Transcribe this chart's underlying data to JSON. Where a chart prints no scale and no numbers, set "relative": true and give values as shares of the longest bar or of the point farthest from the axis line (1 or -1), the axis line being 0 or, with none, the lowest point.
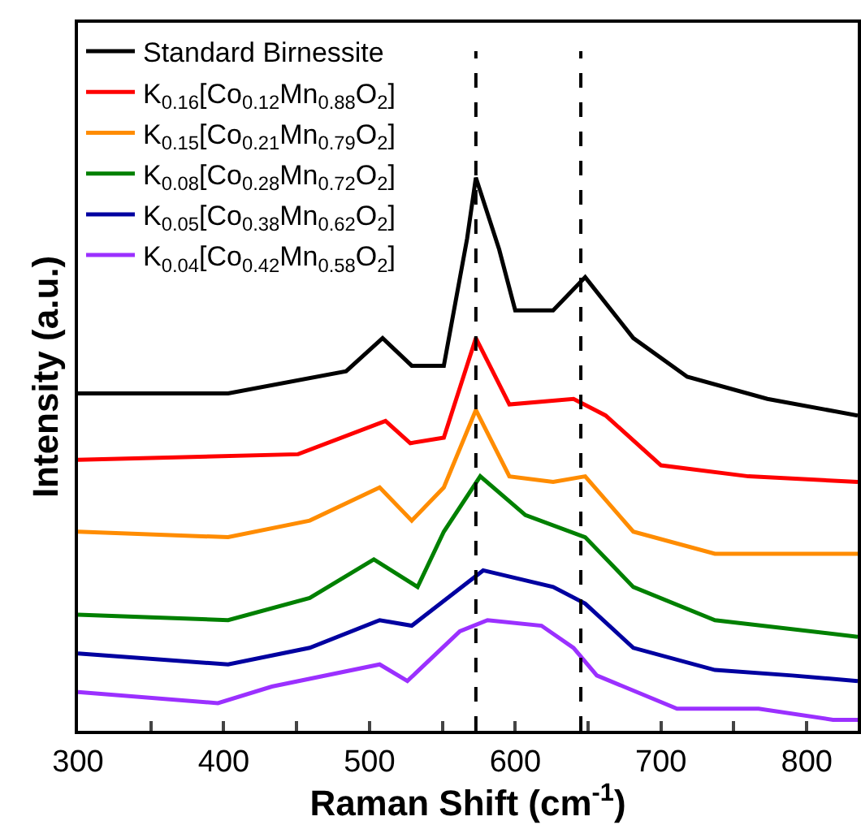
{
  "chart_data": {
    "type": "line",
    "relative": true,
    "xlabel": "Raman Shift (cm$^{-1}$)",
    "ylabel": "Intensity (a.u.)",
    "xlim": [
      300,
      835
    ],
    "xticks": [
      300,
      {
        "value": 350,
        "label": null
      },
      400,
      {
        "value": 450,
        "label": null
      },
      500,
      {
        "value": 550,
        "label": null
      },
      600,
      {
        "value": 650,
        "label": null
      },
      700,
      {
        "value": 750,
        "label": null
      },
      800
    ],
    "legend": "top left",
    "tick_labels": "x",
    "line_style": "solid",
    "marker": "none",
    "ref_lines": [
      {
        "axis": "x",
        "value": 573,
        "color": "#000000",
        "line_style": "dashed"
      },
      {
        "axis": "x",
        "value": 645,
        "color": "#000000",
        "line_style": "dashed"
      }
    ],
    "series": [
      {
        "name": "Standard Birnessite",
        "color": "#000000",
        "x": [
          300,
          403,
          484,
          509,
          529,
          551,
          567,
          573,
          589,
          600,
          626,
          648,
          681,
          718,
          773,
          835
        ],
        "values": [
          0.61,
          0.61,
          0.65,
          0.71,
          0.66,
          0.66,
          0.89,
          1.0,
          0.87,
          0.76,
          0.76,
          0.82,
          0.71,
          0.64,
          0.6,
          0.57
        ]
      },
      {
        "name": "K$_{0.16}$[Co$_{0.12}$Mn$_{0.88}$O$_{2}$]",
        "color": "#ff0000",
        "x": [
          300,
          451,
          511,
          528,
          551,
          573,
          596,
          640,
          662,
          700,
          760,
          835
        ],
        "values": [
          0.49,
          0.5,
          0.56,
          0.52,
          0.53,
          0.71,
          0.59,
          0.6,
          0.57,
          0.48,
          0.46,
          0.45
        ]
      },
      {
        "name": "K$_{0.15}$[Co$_{0.21}$Mn$_{0.79}$O$_{2}$]",
        "color": "#ff8c00",
        "x": [
          300,
          403,
          459,
          507,
          529,
          551,
          573,
          596,
          626,
          648,
          681,
          737,
          835
        ],
        "values": [
          0.36,
          0.35,
          0.38,
          0.44,
          0.38,
          0.44,
          0.58,
          0.46,
          0.45,
          0.46,
          0.36,
          0.32,
          0.32
        ]
      },
      {
        "name": "K$_{0.08}$[Co$_{0.28}$Mn$_{0.72}$O$_{2}$]",
        "color": "#008000",
        "x": [
          300,
          403,
          459,
          503,
          533,
          551,
          576,
          607,
          648,
          681,
          737,
          835
        ],
        "values": [
          0.21,
          0.2,
          0.24,
          0.31,
          0.26,
          0.36,
          0.46,
          0.39,
          0.35,
          0.26,
          0.2,
          0.17
        ]
      },
      {
        "name": "K$_{0.05}$[Co$_{0.38}$Mn$_{0.62}$O$_{2}$]",
        "color": "#0000a0",
        "x": [
          300,
          403,
          459,
          507,
          529,
          578,
          626,
          648,
          681,
          737,
          790,
          835
        ],
        "values": [
          0.14,
          0.12,
          0.15,
          0.2,
          0.19,
          0.29,
          0.26,
          0.23,
          0.15,
          0.11,
          0.1,
          0.09
        ]
      },
      {
        "name": "K$_{0.04}$[Co$_{0.42}$Mn$_{0.58}$O$_{2}$]",
        "color": "#9b30ff",
        "x": [
          300,
          396,
          433,
          507,
          526,
          562,
          581,
          618,
          640,
          656,
          711,
          767,
          818,
          835
        ],
        "values": [
          0.07,
          0.05,
          0.08,
          0.12,
          0.09,
          0.18,
          0.2,
          0.19,
          0.15,
          0.1,
          0.04,
          0.04,
          0.02,
          0.02
        ]
      }
    ]
  }
}
